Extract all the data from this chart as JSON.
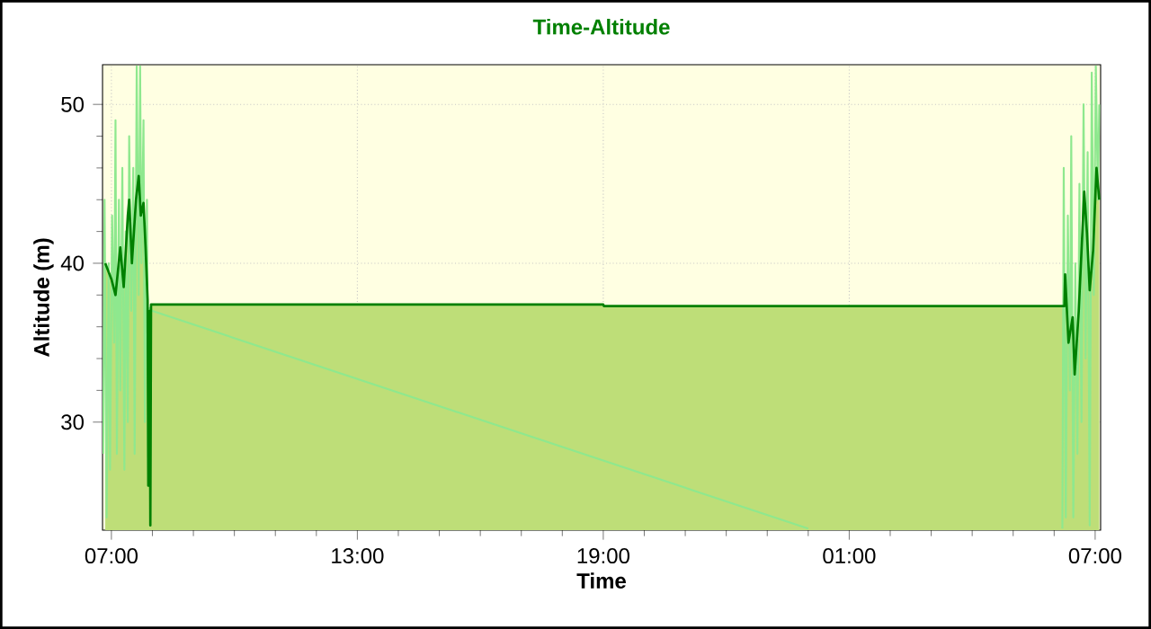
{
  "chart_data": {
    "type": "line",
    "title": "Time-Altitude",
    "xlabel": "Time",
    "ylabel": "Altitude (m)",
    "xlim": [
      "2000-01-01T06:47",
      "2000-01-02T07:08"
    ],
    "ylim": [
      23.2,
      52.5
    ],
    "xticks": [
      {
        "value": "2000-01-01T07:00",
        "label": "07:00"
      },
      {
        "value": "2000-01-01T13:00",
        "label": "13:00"
      },
      {
        "value": "2000-01-01T19:00",
        "label": "19:00"
      },
      {
        "value": "2000-01-02T01:00",
        "label": "01:00"
      },
      {
        "value": "2000-01-02T07:00",
        "label": "07:00"
      }
    ],
    "yticks": [
      30,
      40,
      50
    ],
    "grid": true,
    "marker": "none",
    "line_style": "solid",
    "series": [
      {
        "color": "#8ee88e",
        "x": [
          "2000-01-01T06:48",
          "2000-01-01T06:50",
          "2000-01-01T06:53",
          "2000-01-01T06:56",
          "2000-01-01T06:58",
          "2000-01-01T07:01",
          "2000-01-01T07:04",
          "2000-01-01T07:06",
          "2000-01-01T07:08",
          "2000-01-01T07:11",
          "2000-01-01T07:13",
          "2000-01-01T07:16",
          "2000-01-01T07:19",
          "2000-01-01T07:21",
          "2000-01-01T07:24",
          "2000-01-01T07:26",
          "2000-01-01T07:29",
          "2000-01-01T07:32",
          "2000-01-01T07:34",
          "2000-01-01T07:37",
          "2000-01-01T07:40",
          "2000-01-01T07:42",
          "2000-01-01T07:44",
          "2000-01-01T07:47",
          "2000-01-01T07:49",
          "2000-01-01T07:52",
          "2000-01-01T07:54",
          "2000-01-01T07:56",
          "2000-01-01T08:00",
          "2000-01-02T00:00"
        ],
        "values": [
          28,
          44,
          24,
          40,
          27,
          43,
          35,
          49,
          28,
          44,
          32,
          46,
          27,
          42,
          30,
          48,
          37,
          46,
          28,
          52.4,
          38,
          52.4,
          40,
          49,
          30,
          44,
          27,
          37.2,
          37,
          23.3
        ]
      },
      {
        "color": "#8ee88e",
        "x": [
          "2000-01-02T06:12",
          "2000-01-02T06:14",
          "2000-01-02T06:17",
          "2000-01-02T06:20",
          "2000-01-02T06:23",
          "2000-01-02T06:25",
          "2000-01-02T06:28",
          "2000-01-02T06:31",
          "2000-01-02T06:34",
          "2000-01-02T06:37",
          "2000-01-02T06:40",
          "2000-01-02T06:43",
          "2000-01-02T06:46",
          "2000-01-02T06:49",
          "2000-01-02T06:52",
          "2000-01-02T06:55",
          "2000-01-02T06:58",
          "2000-01-02T07:01",
          "2000-01-02T07:04",
          "2000-01-02T07:06"
        ],
        "values": [
          23.3,
          46,
          24,
          43,
          32,
          48,
          24,
          40,
          28,
          45,
          30,
          50,
          34,
          47,
          23.5,
          52,
          38,
          52.4,
          44,
          50
        ]
      },
      {
        "type": "area",
        "color": "#008000",
        "x": [
          "2000-01-01T06:51",
          "2000-01-01T07:00",
          "2000-01-01T07:06",
          "2000-01-01T07:13",
          "2000-01-01T07:18",
          "2000-01-01T07:24",
          "2000-01-01T07:26",
          "2000-01-01T07:30",
          "2000-01-01T07:36",
          "2000-01-01T07:40",
          "2000-01-01T07:43",
          "2000-01-01T07:47",
          "2000-01-01T07:50",
          "2000-01-01T07:53",
          "2000-01-01T07:54",
          "2000-01-01T07:56",
          "2000-01-01T07:57",
          "2000-01-01T07:58",
          "2000-01-01T19:00",
          "2000-01-01T19:01",
          "2000-01-02T06:15",
          "2000-01-02T06:16",
          "2000-01-02T06:21",
          "2000-01-02T06:27",
          "2000-01-02T06:30",
          "2000-01-02T06:36",
          "2000-01-02T06:44",
          "2000-01-02T06:48",
          "2000-01-02T06:52",
          "2000-01-02T06:57",
          "2000-01-02T07:02",
          "2000-01-02T07:06"
        ],
        "values": [
          40,
          39,
          38,
          41,
          38.5,
          43,
          44,
          40,
          44,
          45.5,
          43,
          43.8,
          41,
          37.7,
          26,
          37,
          23.5,
          37.4,
          37.4,
          37.3,
          37.3,
          39.3,
          35,
          36.6,
          33,
          37,
          44.5,
          41.9,
          38.3,
          40.8,
          46,
          44
        ]
      }
    ]
  }
}
